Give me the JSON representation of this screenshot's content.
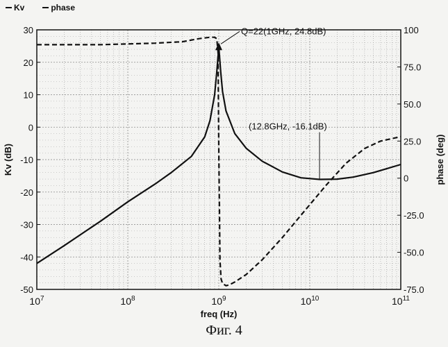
{
  "chart_data": {
    "type": "line",
    "title": "",
    "xlabel": "freq (Hz)",
    "ylabel": "Kv (dB)",
    "y2label": "phase (deg)",
    "xscale": "log",
    "xlim": [
      10000000,
      100000000000
    ],
    "ylim": [
      -50,
      30
    ],
    "y2lim": [
      -75,
      100
    ],
    "x_ticks": [
      {
        "value": 10000000,
        "base": "10",
        "exp": "7"
      },
      {
        "value": 100000000,
        "base": "10",
        "exp": "8"
      },
      {
        "value": 1000000000,
        "base": "10",
        "exp": "9"
      },
      {
        "value": 10000000000,
        "base": "10",
        "exp": "10"
      },
      {
        "value": 100000000000,
        "base": "10",
        "exp": "11"
      }
    ],
    "y_ticks": [
      {
        "value": 30,
        "label": "30"
      },
      {
        "value": 20,
        "label": "20"
      },
      {
        "value": 10,
        "label": "10"
      },
      {
        "value": 0,
        "label": "0"
      },
      {
        "value": -10,
        "label": "-10"
      },
      {
        "value": -20,
        "label": "-20"
      },
      {
        "value": -30,
        "label": "-30"
      },
      {
        "value": -40,
        "label": "-40"
      },
      {
        "value": -50,
        "label": "-50"
      }
    ],
    "y2_ticks": [
      {
        "value": 100,
        "label": "100"
      },
      {
        "value": 75,
        "label": "75.0"
      },
      {
        "value": 50,
        "label": "50.0"
      },
      {
        "value": 25,
        "label": "25.0"
      },
      {
        "value": 0,
        "label": "0"
      },
      {
        "value": -25,
        "label": "-25.0"
      },
      {
        "value": -50,
        "label": "-50.0"
      },
      {
        "value": -75,
        "label": "-75.0"
      }
    ],
    "grid": true,
    "legend_position": "top-left",
    "series": [
      {
        "name": "Kv",
        "axis": "left",
        "style": "solid",
        "x": [
          10000000,
          20000000,
          50000000,
          100000000,
          200000000,
          300000000,
          500000000,
          700000000,
          800000000,
          900000000,
          950000000,
          1000000000,
          1050000000,
          1100000000,
          1200000000,
          1500000000,
          2000000000,
          3000000000,
          5000000000,
          8000000000,
          12800000000,
          20000000000,
          30000000000,
          50000000000,
          70000000000,
          100000000000
        ],
        "y": [
          -42,
          -36.5,
          -29,
          -23,
          -17.5,
          -14,
          -9,
          -3,
          2,
          10,
          17,
          24.8,
          17,
          11,
          5,
          -2,
          -6.5,
          -10.5,
          -13.8,
          -15.6,
          -16.1,
          -16,
          -15.4,
          -14,
          -12.8,
          -11.5
        ]
      },
      {
        "name": "phase",
        "axis": "right",
        "style": "dashed",
        "x": [
          10000000,
          50000000,
          100000000,
          200000000,
          400000000,
          600000000,
          800000000,
          900000000,
          950000000,
          980000000,
          1000000000,
          1030000000,
          1060000000,
          1100000000,
          1200000000,
          1300000000,
          1500000000,
          2000000000,
          3000000000,
          5000000000,
          8000000000,
          15000000000,
          25000000000,
          40000000000,
          60000000000,
          100000000000
        ],
        "y": [
          90,
          90,
          90.5,
          91,
          92,
          94,
          95,
          95,
          94,
          85,
          20,
          -55,
          -68,
          -71,
          -72.5,
          -72,
          -70,
          -65,
          -55,
          -40,
          -25,
          -5,
          10,
          20,
          25,
          28
        ]
      }
    ],
    "annotations": [
      {
        "label": "Q=22(1GHz, 24.8dB)",
        "x": 1000000000,
        "y": 24.8
      },
      {
        "label": "(12.8GHz, -16.1dB)",
        "x": 12800000000,
        "y": -16.1
      }
    ]
  },
  "caption": "Фиг. 4",
  "colors": {
    "line": "#111111",
    "grid": "#8a8a8a",
    "background": "#f4f4f2"
  }
}
